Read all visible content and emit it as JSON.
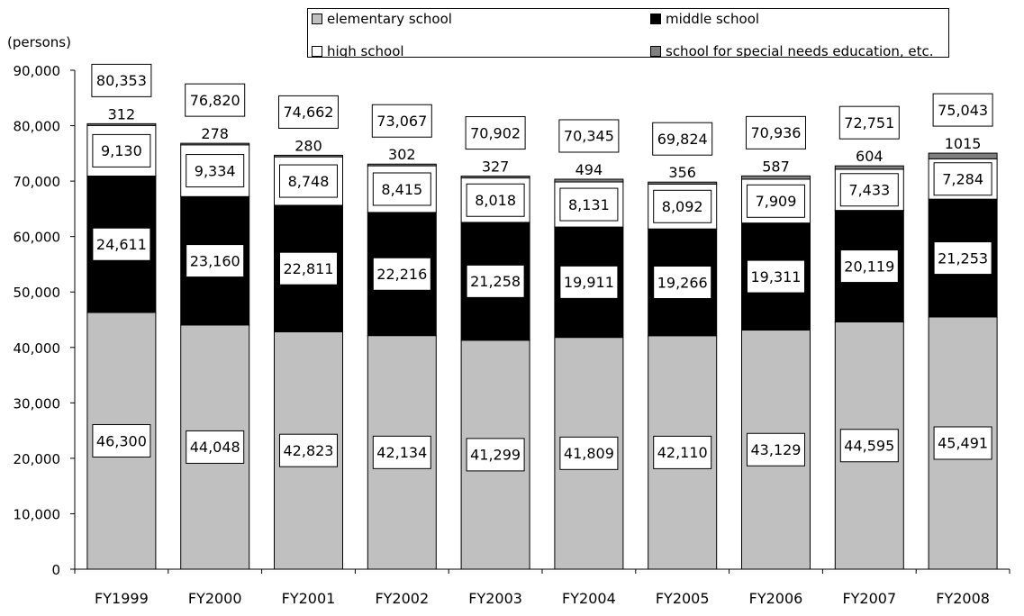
{
  "chart_data": {
    "type": "bar",
    "stacked": true,
    "unit_label": "(persons)",
    "categories": [
      "FY1999",
      "FY2000",
      "FY2001",
      "FY2002",
      "FY2003",
      "FY2004",
      "FY2005",
      "FY2006",
      "FY2007",
      "FY2008"
    ],
    "series": [
      {
        "name": "elementary school",
        "color": "#c0c0c0",
        "values": [
          46300,
          44048,
          42823,
          42134,
          41299,
          41809,
          42110,
          43129,
          44595,
          45491
        ]
      },
      {
        "name": "middle school",
        "color": "#000000",
        "values": [
          24611,
          23160,
          22811,
          22216,
          21258,
          19911,
          19266,
          19311,
          20119,
          21253
        ]
      },
      {
        "name": "high school",
        "color": "#ffffff",
        "values": [
          9130,
          9334,
          8748,
          8415,
          8018,
          8131,
          8092,
          7909,
          7433,
          7284
        ]
      },
      {
        "name": "school for special needs education, etc.",
        "color": "#808080",
        "values": [
          312,
          278,
          280,
          302,
          327,
          494,
          356,
          587,
          604,
          1015
        ]
      }
    ],
    "value_labels": {
      "elementary school": [
        "46,300",
        "44,048",
        "42,823",
        "42,134",
        "41,299",
        "41,809",
        "42,110",
        "43,129",
        "44,595",
        "45,491"
      ],
      "middle school": [
        "24,611",
        "23,160",
        "22,811",
        "22,216",
        "21,258",
        "19,911",
        "19,266",
        "19,311",
        "20,119",
        "21,253"
      ],
      "high school": [
        "9,130",
        "9,334",
        "8,748",
        "8,415",
        "8,018",
        "8,131",
        "8,092",
        "7,909",
        "7,433",
        "7,284"
      ],
      "school for special needs education, etc.": [
        "312",
        "278",
        "280",
        "302",
        "327",
        "494",
        "356",
        "587",
        "604",
        "1015"
      ]
    },
    "totals": [
      "80,353",
      "76,820",
      "74,662",
      "73,067",
      "70,902",
      "70,345",
      "69,824",
      "70,936",
      "72,751",
      "75,043"
    ],
    "ylim": [
      0,
      90000
    ],
    "yticks": [
      0,
      10000,
      20000,
      30000,
      40000,
      50000,
      60000,
      70000,
      80000,
      90000
    ],
    "ytick_labels": [
      "0",
      "10,000",
      "20,000",
      "30,000",
      "40,000",
      "50,000",
      "60,000",
      "70,000",
      "80,000",
      "90,000"
    ],
    "grid": false,
    "legend_position": "top"
  },
  "legend": [
    {
      "label": "elementary school",
      "color": "#c0c0c0"
    },
    {
      "label": "middle school",
      "color": "#000000"
    },
    {
      "label": "high school",
      "color": "#ffffff"
    },
    {
      "label": "school for special needs education, etc.",
      "color": "#808080"
    }
  ]
}
